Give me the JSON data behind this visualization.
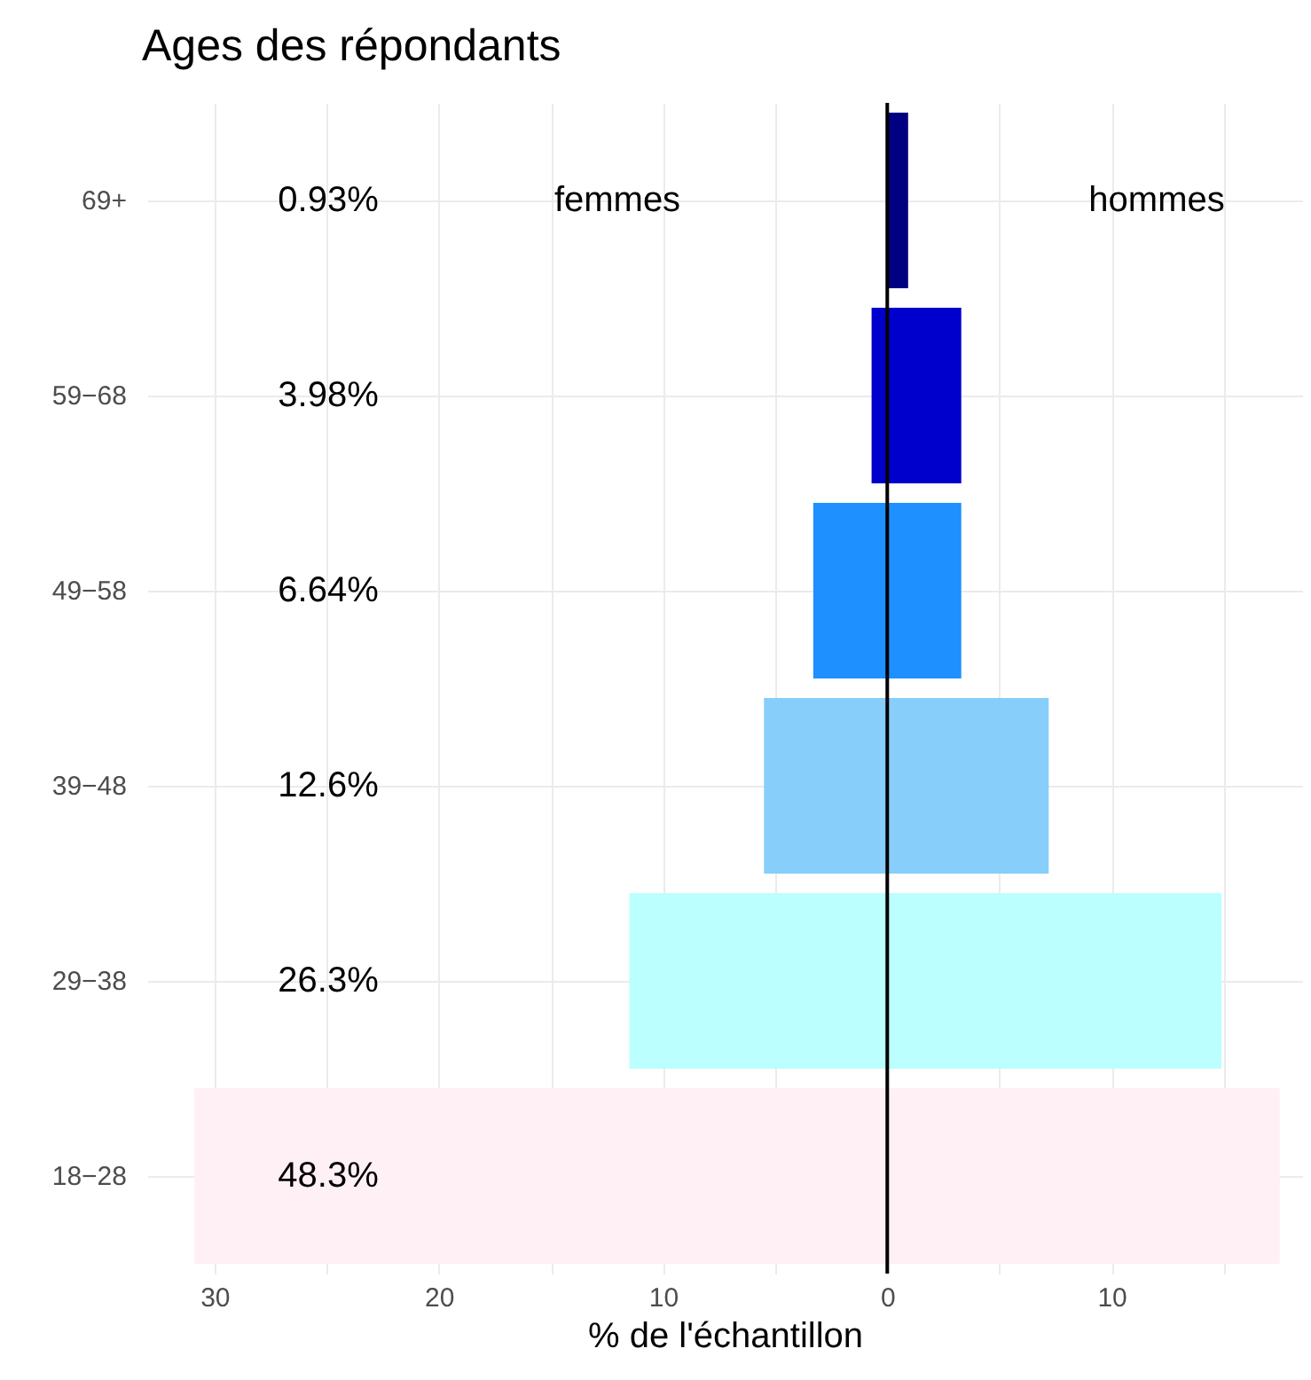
{
  "chart_data": {
    "type": "bar",
    "title": "Ages des répondants",
    "xlabel": "% de l'échantillon",
    "orientation": "horizontal",
    "stacked": true,
    "categories": [
      "69+",
      "59−68",
      "49−58",
      "39−48",
      "29−38",
      "18−28"
    ],
    "series": [
      {
        "colors": [
          "#000080",
          "#0000cd",
          "#1e90ff",
          "#87cefa",
          "#bbffff",
          "#fff0f5"
        ],
        "values": [
          0,
          -0.7,
          -3.3,
          -5.5,
          -11.5,
          -30.9
        ]
      },
      {
        "colors": [
          "#000080",
          "#0000cd",
          "#1e90ff",
          "#87cefa",
          "#bbffff",
          "#fff0f5"
        ],
        "values": [
          0.93,
          3.3,
          3.3,
          7.2,
          14.9,
          17.5
        ]
      }
    ],
    "annotations": [
      "0.93%",
      "3.98%",
      "6.64%",
      "12.6%",
      "26.3%",
      "48.3%",
      "femmes",
      "hommes"
    ],
    "xlim": [
      -33,
      18.5
    ],
    "xticks": [
      {
        "value": -30,
        "label": "30"
      },
      {
        "value": -25,
        "label": null
      },
      {
        "value": -20,
        "label": "20"
      },
      {
        "value": -15,
        "label": null
      },
      {
        "value": -10,
        "label": "10"
      },
      {
        "value": -5,
        "label": null
      },
      0,
      {
        "value": 5,
        "label": null
      },
      {
        "value": 10,
        "label": "10"
      },
      {
        "value": 15,
        "label": null
      }
    ],
    "ref_lines": [
      {
        "axis": "x",
        "value": 0,
        "color": "#000000"
      }
    ],
    "grid": true
  }
}
